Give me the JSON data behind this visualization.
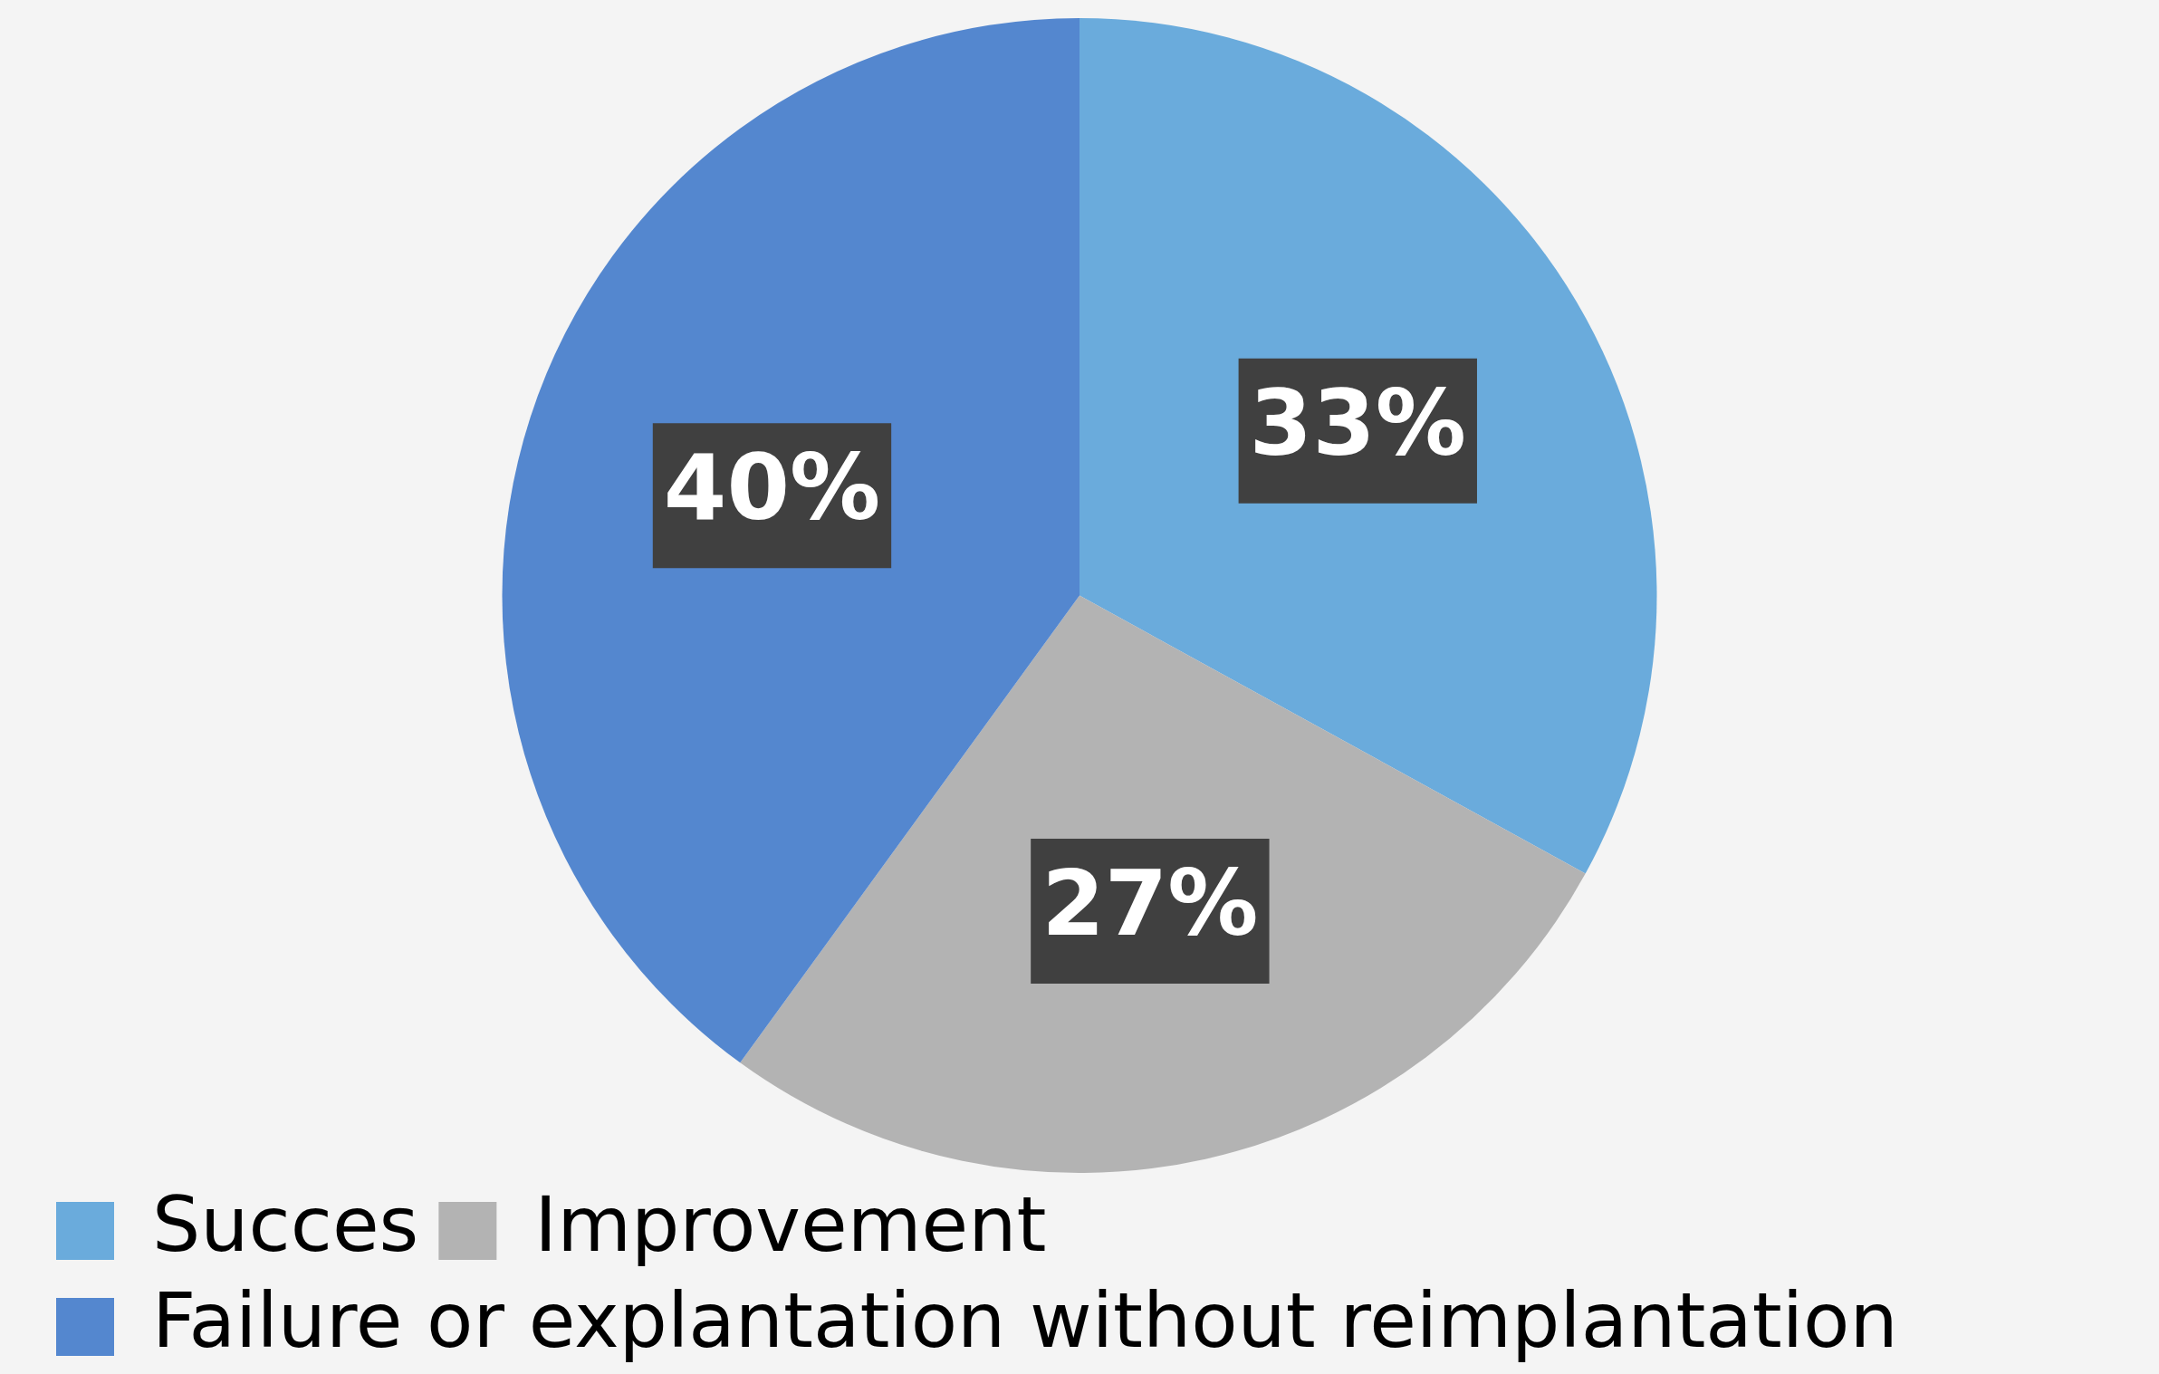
{
  "chart_data": {
    "type": "pie",
    "categories": [
      "Succes",
      "Improvement",
      "Failure or explantation without reimplantation"
    ],
    "values": [
      33,
      27,
      40
    ],
    "colors": [
      "#6aabdc",
      "#b3b3b3",
      "#5487cf"
    ],
    "value_labels": [
      "33%",
      "27%",
      "40%"
    ],
    "legend": "bottom left"
  }
}
